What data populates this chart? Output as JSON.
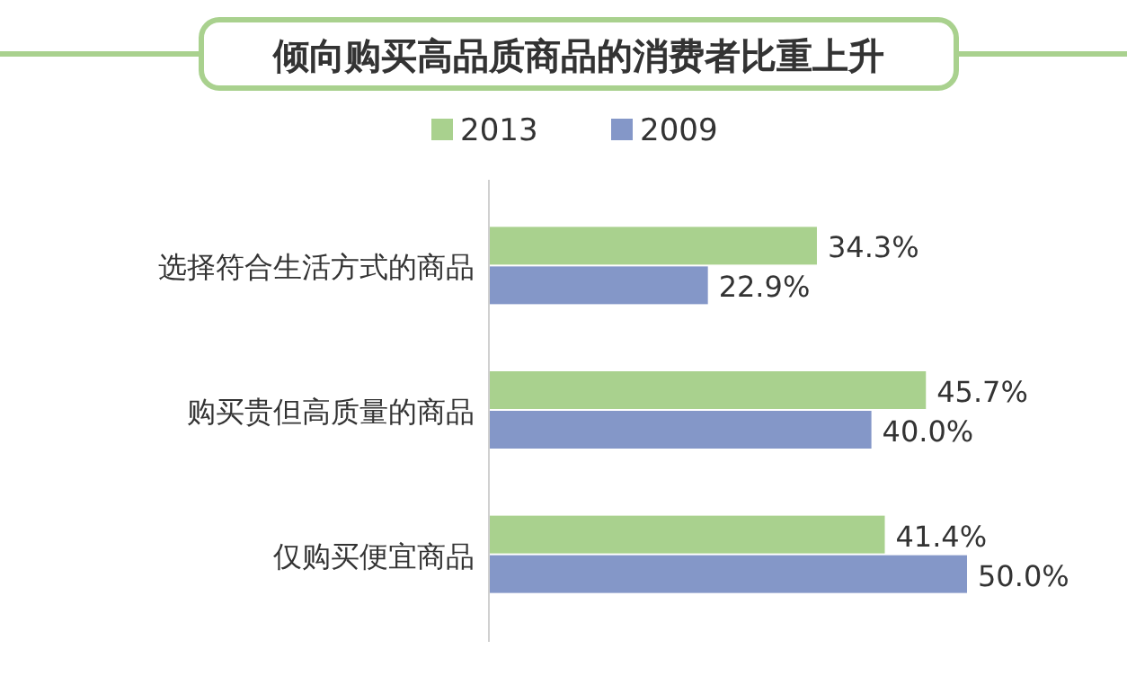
{
  "chart_data": {
    "type": "bar",
    "orientation": "horizontal",
    "title": "倾向购买高品质商品的消费者比重上升",
    "categories": [
      "选择符合生活方式的商品",
      "购买贵但高质量的商品",
      "仅购买便宜商品"
    ],
    "series": [
      {
        "name": "2013",
        "color": "#a9d18e",
        "values": [
          34.3,
          45.7,
          41.4
        ],
        "value_labels": [
          "34.3%",
          "45.7%",
          "41.4%"
        ]
      },
      {
        "name": "2009",
        "color": "#8497c8",
        "values": [
          22.9,
          40.0,
          50.0
        ],
        "value_labels": [
          "22.9%",
          "40.0%",
          "50.0%"
        ]
      }
    ],
    "legend": "top"
  }
}
